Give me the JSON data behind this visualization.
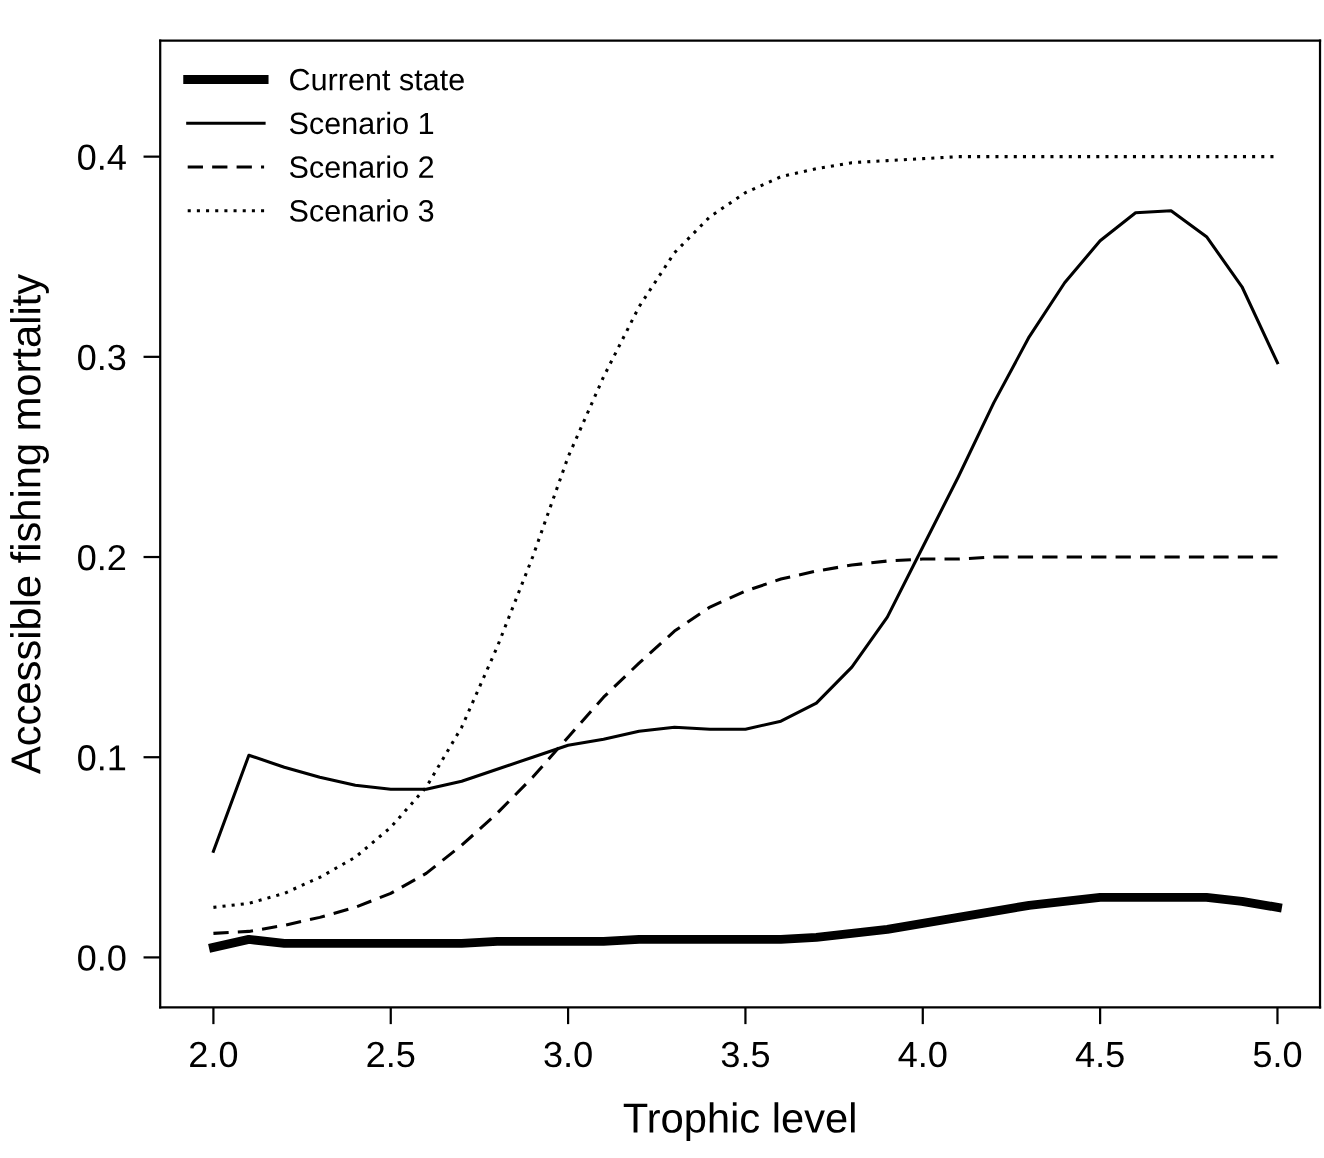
{
  "chart_data": {
    "type": "line",
    "xlabel": "Trophic level",
    "ylabel": "Accessible fishing mortality",
    "x": [
      2.0,
      2.1,
      2.2,
      2.3,
      2.4,
      2.5,
      2.6,
      2.7,
      2.8,
      2.9,
      3.0,
      3.1,
      3.2,
      3.3,
      3.4,
      3.5,
      3.6,
      3.7,
      3.8,
      3.9,
      4.0,
      4.1,
      4.2,
      4.3,
      4.4,
      4.5,
      4.6,
      4.7,
      4.8,
      4.9,
      5.0
    ],
    "xlim": [
      1.85,
      5.12
    ],
    "xticks": [
      {
        "value": 2,
        "label": "2.0"
      },
      {
        "value": 2.5,
        "label": "2.5"
      },
      {
        "value": 3,
        "label": "3.0"
      },
      {
        "value": 3.5,
        "label": "3.5"
      },
      {
        "value": 4,
        "label": "4.0"
      },
      {
        "value": 4.5,
        "label": "4.5"
      },
      {
        "value": 5,
        "label": "5.0"
      }
    ],
    "ylim": [
      -0.025,
      0.458
    ],
    "yticks": [
      {
        "value": 0,
        "label": "0.0"
      },
      0.1,
      0.2,
      0.3,
      0.4
    ],
    "legend": "top left",
    "grid": false,
    "series": [
      {
        "name": "Current state",
        "color": "#000000",
        "line_style": "solid",
        "values": [
          0.005,
          0.009,
          0.007,
          0.007,
          0.007,
          0.007,
          0.007,
          0.007,
          0.008,
          0.008,
          0.008,
          0.008,
          0.009,
          0.009,
          0.009,
          0.009,
          0.009,
          0.01,
          0.012,
          0.014,
          0.017,
          0.02,
          0.023,
          0.026,
          0.028,
          0.03,
          0.03,
          0.03,
          0.03,
          0.028,
          0.025
        ]
      },
      {
        "name": "Scenario 1",
        "color": "#000000",
        "line_style": "solid",
        "values": [
          0.053,
          0.101,
          0.095,
          0.09,
          0.086,
          0.084,
          0.084,
          0.088,
          0.094,
          0.1,
          0.106,
          0.109,
          0.113,
          0.115,
          0.114,
          0.114,
          0.118,
          0.127,
          0.145,
          0.17,
          0.205,
          0.24,
          0.277,
          0.31,
          0.337,
          0.358,
          0.372,
          0.373,
          0.36,
          0.335,
          0.297
        ]
      },
      {
        "name": "Scenario 2",
        "color": "#000000",
        "line_style": "dashed",
        "values": [
          0.012,
          0.013,
          0.016,
          0.02,
          0.025,
          0.032,
          0.042,
          0.056,
          0.072,
          0.09,
          0.11,
          0.13,
          0.147,
          0.163,
          0.175,
          0.183,
          0.189,
          0.193,
          0.196,
          0.198,
          0.199,
          0.199,
          0.2,
          0.2,
          0.2,
          0.2,
          0.2,
          0.2,
          0.2,
          0.2,
          0.2
        ]
      },
      {
        "name": "Scenario 3",
        "color": "#000000",
        "line_style": "dotted",
        "values": [
          0.025,
          0.027,
          0.032,
          0.04,
          0.05,
          0.065,
          0.085,
          0.115,
          0.155,
          0.2,
          0.25,
          0.29,
          0.325,
          0.352,
          0.37,
          0.382,
          0.39,
          0.394,
          0.397,
          0.398,
          0.399,
          0.4,
          0.4,
          0.4,
          0.4,
          0.4,
          0.4,
          0.4,
          0.4,
          0.4,
          0.4
        ]
      }
    ]
  }
}
